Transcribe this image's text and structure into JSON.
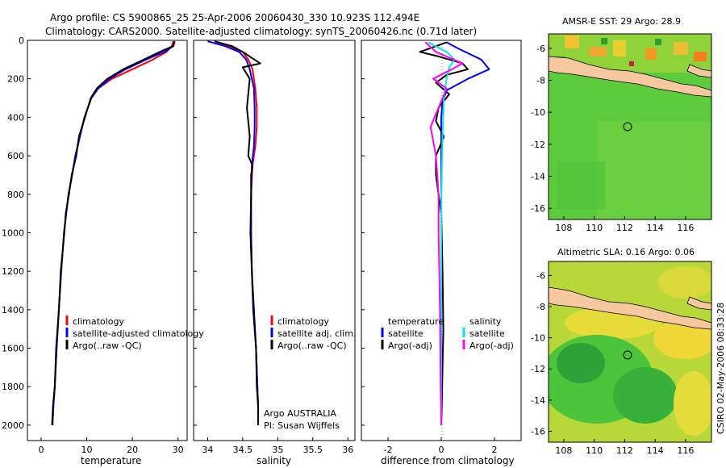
{
  "header": {
    "line1": "Argo profile: CS 5900865_25 25-Apr-2006 20060430_330 10.923S 112.494E",
    "line2": "Climatology: CARS2000. Satellite-adjusted climatology: synTS_20060426.nc (0.71d later)"
  },
  "watermark": "CSIRO 02-May-2006 08:33:28",
  "colors": {
    "clim": "#ff0000",
    "sat": "#0000ff",
    "argo": "#000000",
    "sat_diff": "#00e5ee",
    "argo_adj": "#ff00ff"
  },
  "chart_data": [
    {
      "type": "line",
      "xlabel": "temperature",
      "ylabel": "",
      "xlim": [
        -3,
        32
      ],
      "ylim": [
        2080,
        0
      ],
      "xticks": [
        "0",
        "10",
        "20",
        "30"
      ],
      "yticks": [
        "0",
        "200",
        "400",
        "600",
        "800",
        "1000",
        "1200",
        "1400",
        "1600",
        "1800",
        "2000"
      ],
      "legend": [
        "climatology",
        "satellite-adjusted climatology",
        "Argo(..raw -QC)"
      ],
      "series": [
        {
          "name": "climatology",
          "x": [
            29.0,
            28.6,
            27.5,
            24.5,
            20.0,
            15.5,
            12.5,
            11.0,
            9.5,
            8.5,
            7.5,
            6.8,
            6.0,
            5.5,
            5.0,
            4.4,
            3.9,
            3.4,
            3.0,
            2.7,
            2.5
          ],
          "y": [
            5,
            30,
            60,
            100,
            150,
            200,
            250,
            300,
            400,
            500,
            600,
            700,
            800,
            900,
            1000,
            1200,
            1400,
            1600,
            1800,
            1900,
            2000
          ]
        },
        {
          "name": "satellite-adjusted climatology",
          "x": [
            29.3,
            29.0,
            27.0,
            23.0,
            18.5,
            15.0,
            12.5,
            11.0,
            9.5,
            8.5,
            7.5,
            6.8,
            6.0,
            5.5,
            5.0,
            4.4,
            3.9,
            3.4,
            3.0,
            2.7,
            2.5
          ],
          "y": [
            5,
            30,
            60,
            100,
            150,
            200,
            250,
            300,
            400,
            500,
            600,
            700,
            800,
            900,
            1000,
            1200,
            1400,
            1600,
            1800,
            1900,
            2000
          ]
        },
        {
          "name": "Argo(..raw -QC)",
          "x": [
            29.2,
            28.9,
            26.0,
            22.5,
            18.0,
            14.5,
            12.2,
            10.9,
            9.6,
            8.3,
            7.7,
            6.7,
            6.1,
            5.4,
            5.1,
            4.3,
            3.9,
            3.3,
            3.0,
            2.6,
            2.4
          ],
          "y": [
            5,
            30,
            60,
            100,
            150,
            200,
            250,
            300,
            400,
            500,
            600,
            700,
            800,
            900,
            1000,
            1200,
            1400,
            1600,
            1800,
            1900,
            2000
          ]
        }
      ]
    },
    {
      "type": "line",
      "xlabel": "salinity",
      "ylabel": "",
      "xlim": [
        33.8,
        36.1
      ],
      "ylim": [
        2080,
        0
      ],
      "xticks": [
        "34",
        "34.5",
        "35",
        "35.5",
        "36"
      ],
      "legend": [
        "climatology",
        "satellite adj. clim.",
        "Argo(..raw -QC)"
      ],
      "annotations": [
        "Argo AUSTRALIA",
        "PI: Susan Wijffels"
      ],
      "series": [
        {
          "name": "climatology",
          "x": [
            34.1,
            34.3,
            34.5,
            34.58,
            34.64,
            34.68,
            34.7,
            34.7,
            34.68,
            34.64,
            34.62,
            34.62,
            34.63,
            34.65,
            34.69,
            34.71,
            34.72,
            34.72
          ],
          "y": [
            5,
            30,
            60,
            100,
            150,
            250,
            350,
            450,
            550,
            650,
            800,
            1000,
            1200,
            1400,
            1600,
            1800,
            1900,
            2000
          ]
        },
        {
          "name": "satellite adj. clim.",
          "x": [
            34.0,
            34.25,
            34.45,
            34.55,
            34.6,
            34.66,
            34.67,
            34.67,
            34.66,
            34.63,
            34.62,
            34.62,
            34.63,
            34.65,
            34.69,
            34.71,
            34.72,
            34.72
          ],
          "y": [
            5,
            30,
            60,
            100,
            150,
            250,
            350,
            450,
            550,
            650,
            800,
            1000,
            1200,
            1400,
            1600,
            1800,
            1900,
            2000
          ]
        },
        {
          "name": "Argo(..raw -QC)",
          "x": [
            34.1,
            34.35,
            34.5,
            34.75,
            34.5,
            34.6,
            34.56,
            34.6,
            34.58,
            34.64,
            34.62,
            34.62,
            34.61,
            34.63,
            34.66,
            34.69,
            34.7,
            34.72,
            34.72
          ],
          "y": [
            5,
            30,
            60,
            120,
            140,
            200,
            350,
            500,
            600,
            650,
            700,
            800,
            1000,
            1200,
            1400,
            1600,
            1800,
            1900,
            2000
          ]
        }
      ]
    },
    {
      "type": "line",
      "xlabel": "difference from climatology",
      "ylabel": "",
      "xlim": [
        -3,
        3
      ],
      "ylim": [
        2080,
        0
      ],
      "xticks": [
        "-2",
        "0",
        "2"
      ],
      "legend_groups": [
        {
          "title": "temperature",
          "items": [
            "satellite",
            "Argo(-adj)"
          ]
        },
        {
          "title": "salinity",
          "items": [
            "satellite",
            "Argo(-adj)"
          ]
        }
      ],
      "series": [
        {
          "name": "satellite",
          "group": "temperature",
          "x": [
            0.2,
            0.6,
            1.5,
            1.8,
            1.0,
            0.2,
            0.05,
            0,
            0,
            0,
            0,
            0,
            0,
            0,
            0
          ],
          "y": [
            10,
            40,
            100,
            150,
            200,
            260,
            320,
            400,
            600,
            800,
            1000,
            1400,
            1600,
            1800,
            2000
          ]
        },
        {
          "name": "Argo(-adj)",
          "group": "temperature",
          "x": [
            0.2,
            -0.8,
            -0.2,
            0.8,
            1.0,
            0.2,
            -0.2,
            0.3,
            -0.1,
            -0.2,
            0.1,
            -0.2,
            -0.2,
            -0.1,
            0,
            0.05,
            0.08,
            0.05,
            0.02,
            0
          ],
          "y": [
            10,
            60,
            80,
            120,
            150,
            180,
            220,
            280,
            350,
            420,
            500,
            600,
            700,
            800,
            900,
            1200,
            1500,
            1700,
            1900,
            2000
          ]
        },
        {
          "name": "satellite",
          "group": "salinity",
          "x": [
            -0.5,
            0.2,
            0.5,
            0.3,
            0.2,
            0.1,
            0.05,
            0,
            0,
            0,
            0
          ],
          "y": [
            10,
            60,
            100,
            140,
            200,
            300,
            500,
            800,
            1200,
            1600,
            2000
          ]
        },
        {
          "name": "Argo(-adj)",
          "group": "salinity",
          "x": [
            -0.6,
            -0.2,
            0.8,
            0.4,
            -0.3,
            0.2,
            -0.1,
            -0.4,
            -0.2,
            -0.1,
            -0.1,
            -0.05,
            -0.02,
            0
          ],
          "y": [
            10,
            60,
            120,
            150,
            200,
            250,
            350,
            450,
            600,
            800,
            1000,
            1400,
            1800,
            2000
          ]
        }
      ]
    },
    {
      "type": "heatmap",
      "title": "AMSR-E SST: 29 Argo: 28.9",
      "xlim": [
        107,
        117.7
      ],
      "ylim": [
        -16.7,
        -5.1
      ],
      "xticks": [
        "108",
        "110",
        "112",
        "114",
        "116"
      ],
      "yticks": [
        "-6",
        "-8",
        "-10",
        "-12",
        "-14",
        "-16"
      ],
      "marker": {
        "lon": 112.5,
        "lat": -10.9
      }
    },
    {
      "type": "heatmap",
      "title": "Altimetric SLA: 0.16 Argo: 0.06",
      "xlim": [
        107,
        117.7
      ],
      "ylim": [
        -16.7,
        -5.1
      ],
      "xticks": [
        "108",
        "110",
        "112",
        "114",
        "116"
      ],
      "yticks": [
        "-6",
        "-8",
        "-10",
        "-12",
        "-14",
        "-16"
      ],
      "marker": {
        "lon": 112.5,
        "lat": -10.9
      }
    }
  ]
}
